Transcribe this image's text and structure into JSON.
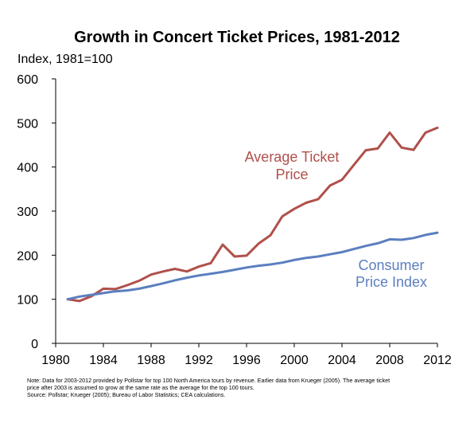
{
  "chart_data": {
    "type": "line",
    "title": "Growth in Concert Ticket Prices, 1981-2012",
    "ylabel": "Index, 1981=100",
    "xlim": [
      1980,
      2012
    ],
    "ylim": [
      0,
      600
    ],
    "x_ticks": [
      "1980",
      "1984",
      "1988",
      "1992",
      "1996",
      "2000",
      "2004",
      "2008",
      "2012"
    ],
    "y_ticks": [
      "0",
      "100",
      "200",
      "300",
      "400",
      "500",
      "600"
    ],
    "grid": false,
    "series": [
      {
        "name": "Average Ticket Price",
        "color": "#b0504b",
        "x": [
          1981,
          1982,
          1983,
          1984,
          1985,
          1986,
          1987,
          1988,
          1989,
          1990,
          1991,
          1992,
          1993,
          1994,
          1995,
          1996,
          1997,
          1998,
          1999,
          2000,
          2001,
          2002,
          2003,
          2004,
          2005,
          2006,
          2007,
          2008,
          2009,
          2010,
          2011,
          2012
        ],
        "values": [
          100,
          96,
          107,
          124,
          123,
          132,
          142,
          156,
          163,
          169,
          163,
          174,
          182,
          224,
          197,
          199,
          226,
          245,
          288,
          305,
          319,
          327,
          358,
          371,
          405,
          438,
          442,
          478,
          444,
          439,
          478,
          489
        ]
      },
      {
        "name": "Consumer Price Index",
        "color": "#5b7fbf",
        "x": [
          1981,
          1982,
          1983,
          1984,
          1985,
          1986,
          1987,
          1988,
          1989,
          1990,
          1991,
          1992,
          1993,
          1994,
          1995,
          1996,
          1997,
          1998,
          1999,
          2000,
          2001,
          2002,
          2003,
          2004,
          2005,
          2006,
          2007,
          2008,
          2009,
          2010,
          2011,
          2012
        ],
        "values": [
          100,
          106,
          110,
          114,
          118,
          120,
          124,
          130,
          136,
          143,
          149,
          154,
          158,
          162,
          167,
          172,
          176,
          179,
          183,
          189,
          194,
          197,
          202,
          207,
          214,
          221,
          227,
          236,
          235,
          239,
          246,
          251
        ]
      }
    ],
    "annotations": {
      "ticket": [
        "Average Ticket",
        "Price"
      ],
      "cpi": [
        "Consumer",
        "Price Index"
      ]
    }
  },
  "notes": {
    "line1": "Note: Data for 2003-2012 provided by Pollstar for top 100 North America tours by revenue. Earlier data from Krueger (2005). The average ticket",
    "line2": "price after 2003 is assumed to grow at the same rate as the average for the top 100 tours.",
    "line3": "Source: Pollstar; Krueger (2005); Bureau of Labor Statistics; CEA calculations."
  }
}
